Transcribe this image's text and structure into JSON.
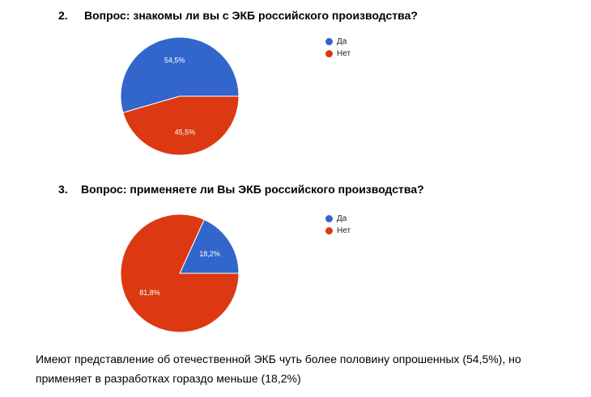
{
  "colors": {
    "yes": "#3366cc",
    "no": "#dc3912"
  },
  "questions": [
    {
      "number": "2.",
      "text": "Вопрос: знакомы ли вы с ЭКБ российского производства?"
    },
    {
      "number": "3.",
      "text": "Вопрос: применяете ли Вы ЭКБ российского производства?"
    }
  ],
  "chart_data": [
    {
      "type": "pie",
      "title": "",
      "legend_position": "right",
      "series": [
        {
          "name": "Да",
          "value": 54.5,
          "label": "54,5%"
        },
        {
          "name": "Нет",
          "value": 45.5,
          "label": "45,5%"
        }
      ]
    },
    {
      "type": "pie",
      "title": "",
      "legend_position": "right",
      "series": [
        {
          "name": "Да",
          "value": 18.2,
          "label": "18,2%"
        },
        {
          "name": "Нет",
          "value": 81.8,
          "label": "81,8%"
        }
      ]
    }
  ],
  "conclusion": {
    "line1": "Имеют представление об отечественной ЭКБ чуть более половину опрошенных (54,5%), но",
    "line2": "применяет в разработках гораздо меньше (18,2%)"
  }
}
